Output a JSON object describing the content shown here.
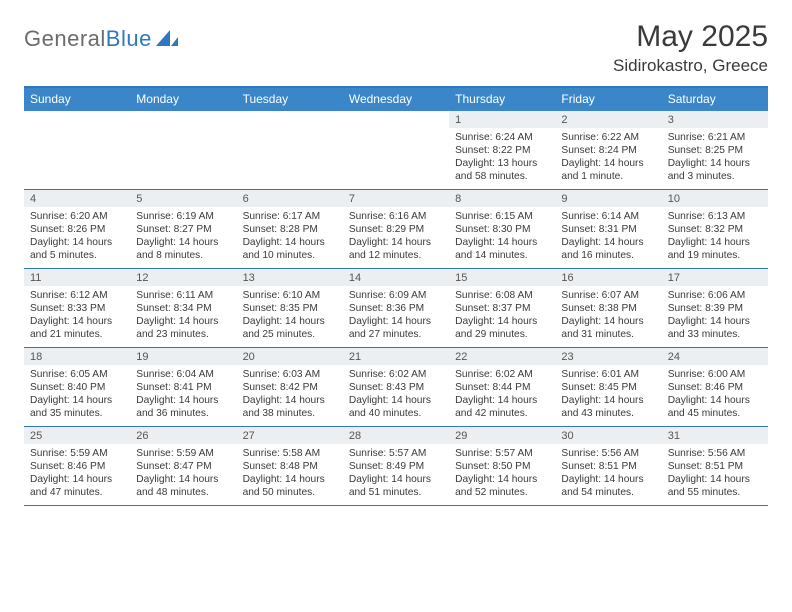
{
  "brand": {
    "part1": "General",
    "part2": "Blue"
  },
  "title": "May 2025",
  "location": "Sidirokastro, Greece",
  "colors": {
    "header_bg": "#3a86c8",
    "accent_border": "#2f78bf",
    "daynum_bg": "#eceff1",
    "text": "#3a3a3a",
    "logo_gray": "#6b6b6b"
  },
  "days_of_week": [
    "Sunday",
    "Monday",
    "Tuesday",
    "Wednesday",
    "Thursday",
    "Friday",
    "Saturday"
  ],
  "weeks": [
    [
      {
        "n": "",
        "sr": "",
        "ss": "",
        "dl": ""
      },
      {
        "n": "",
        "sr": "",
        "ss": "",
        "dl": ""
      },
      {
        "n": "",
        "sr": "",
        "ss": "",
        "dl": ""
      },
      {
        "n": "",
        "sr": "",
        "ss": "",
        "dl": ""
      },
      {
        "n": "1",
        "sr": "Sunrise: 6:24 AM",
        "ss": "Sunset: 8:22 PM",
        "dl": "Daylight: 13 hours and 58 minutes."
      },
      {
        "n": "2",
        "sr": "Sunrise: 6:22 AM",
        "ss": "Sunset: 8:24 PM",
        "dl": "Daylight: 14 hours and 1 minute."
      },
      {
        "n": "3",
        "sr": "Sunrise: 6:21 AM",
        "ss": "Sunset: 8:25 PM",
        "dl": "Daylight: 14 hours and 3 minutes."
      }
    ],
    [
      {
        "n": "4",
        "sr": "Sunrise: 6:20 AM",
        "ss": "Sunset: 8:26 PM",
        "dl": "Daylight: 14 hours and 5 minutes."
      },
      {
        "n": "5",
        "sr": "Sunrise: 6:19 AM",
        "ss": "Sunset: 8:27 PM",
        "dl": "Daylight: 14 hours and 8 minutes."
      },
      {
        "n": "6",
        "sr": "Sunrise: 6:17 AM",
        "ss": "Sunset: 8:28 PM",
        "dl": "Daylight: 14 hours and 10 minutes."
      },
      {
        "n": "7",
        "sr": "Sunrise: 6:16 AM",
        "ss": "Sunset: 8:29 PM",
        "dl": "Daylight: 14 hours and 12 minutes."
      },
      {
        "n": "8",
        "sr": "Sunrise: 6:15 AM",
        "ss": "Sunset: 8:30 PM",
        "dl": "Daylight: 14 hours and 14 minutes."
      },
      {
        "n": "9",
        "sr": "Sunrise: 6:14 AM",
        "ss": "Sunset: 8:31 PM",
        "dl": "Daylight: 14 hours and 16 minutes."
      },
      {
        "n": "10",
        "sr": "Sunrise: 6:13 AM",
        "ss": "Sunset: 8:32 PM",
        "dl": "Daylight: 14 hours and 19 minutes."
      }
    ],
    [
      {
        "n": "11",
        "sr": "Sunrise: 6:12 AM",
        "ss": "Sunset: 8:33 PM",
        "dl": "Daylight: 14 hours and 21 minutes."
      },
      {
        "n": "12",
        "sr": "Sunrise: 6:11 AM",
        "ss": "Sunset: 8:34 PM",
        "dl": "Daylight: 14 hours and 23 minutes."
      },
      {
        "n": "13",
        "sr": "Sunrise: 6:10 AM",
        "ss": "Sunset: 8:35 PM",
        "dl": "Daylight: 14 hours and 25 minutes."
      },
      {
        "n": "14",
        "sr": "Sunrise: 6:09 AM",
        "ss": "Sunset: 8:36 PM",
        "dl": "Daylight: 14 hours and 27 minutes."
      },
      {
        "n": "15",
        "sr": "Sunrise: 6:08 AM",
        "ss": "Sunset: 8:37 PM",
        "dl": "Daylight: 14 hours and 29 minutes."
      },
      {
        "n": "16",
        "sr": "Sunrise: 6:07 AM",
        "ss": "Sunset: 8:38 PM",
        "dl": "Daylight: 14 hours and 31 minutes."
      },
      {
        "n": "17",
        "sr": "Sunrise: 6:06 AM",
        "ss": "Sunset: 8:39 PM",
        "dl": "Daylight: 14 hours and 33 minutes."
      }
    ],
    [
      {
        "n": "18",
        "sr": "Sunrise: 6:05 AM",
        "ss": "Sunset: 8:40 PM",
        "dl": "Daylight: 14 hours and 35 minutes."
      },
      {
        "n": "19",
        "sr": "Sunrise: 6:04 AM",
        "ss": "Sunset: 8:41 PM",
        "dl": "Daylight: 14 hours and 36 minutes."
      },
      {
        "n": "20",
        "sr": "Sunrise: 6:03 AM",
        "ss": "Sunset: 8:42 PM",
        "dl": "Daylight: 14 hours and 38 minutes."
      },
      {
        "n": "21",
        "sr": "Sunrise: 6:02 AM",
        "ss": "Sunset: 8:43 PM",
        "dl": "Daylight: 14 hours and 40 minutes."
      },
      {
        "n": "22",
        "sr": "Sunrise: 6:02 AM",
        "ss": "Sunset: 8:44 PM",
        "dl": "Daylight: 14 hours and 42 minutes."
      },
      {
        "n": "23",
        "sr": "Sunrise: 6:01 AM",
        "ss": "Sunset: 8:45 PM",
        "dl": "Daylight: 14 hours and 43 minutes."
      },
      {
        "n": "24",
        "sr": "Sunrise: 6:00 AM",
        "ss": "Sunset: 8:46 PM",
        "dl": "Daylight: 14 hours and 45 minutes."
      }
    ],
    [
      {
        "n": "25",
        "sr": "Sunrise: 5:59 AM",
        "ss": "Sunset: 8:46 PM",
        "dl": "Daylight: 14 hours and 47 minutes."
      },
      {
        "n": "26",
        "sr": "Sunrise: 5:59 AM",
        "ss": "Sunset: 8:47 PM",
        "dl": "Daylight: 14 hours and 48 minutes."
      },
      {
        "n": "27",
        "sr": "Sunrise: 5:58 AM",
        "ss": "Sunset: 8:48 PM",
        "dl": "Daylight: 14 hours and 50 minutes."
      },
      {
        "n": "28",
        "sr": "Sunrise: 5:57 AM",
        "ss": "Sunset: 8:49 PM",
        "dl": "Daylight: 14 hours and 51 minutes."
      },
      {
        "n": "29",
        "sr": "Sunrise: 5:57 AM",
        "ss": "Sunset: 8:50 PM",
        "dl": "Daylight: 14 hours and 52 minutes."
      },
      {
        "n": "30",
        "sr": "Sunrise: 5:56 AM",
        "ss": "Sunset: 8:51 PM",
        "dl": "Daylight: 14 hours and 54 minutes."
      },
      {
        "n": "31",
        "sr": "Sunrise: 5:56 AM",
        "ss": "Sunset: 8:51 PM",
        "dl": "Daylight: 14 hours and 55 minutes."
      }
    ]
  ]
}
